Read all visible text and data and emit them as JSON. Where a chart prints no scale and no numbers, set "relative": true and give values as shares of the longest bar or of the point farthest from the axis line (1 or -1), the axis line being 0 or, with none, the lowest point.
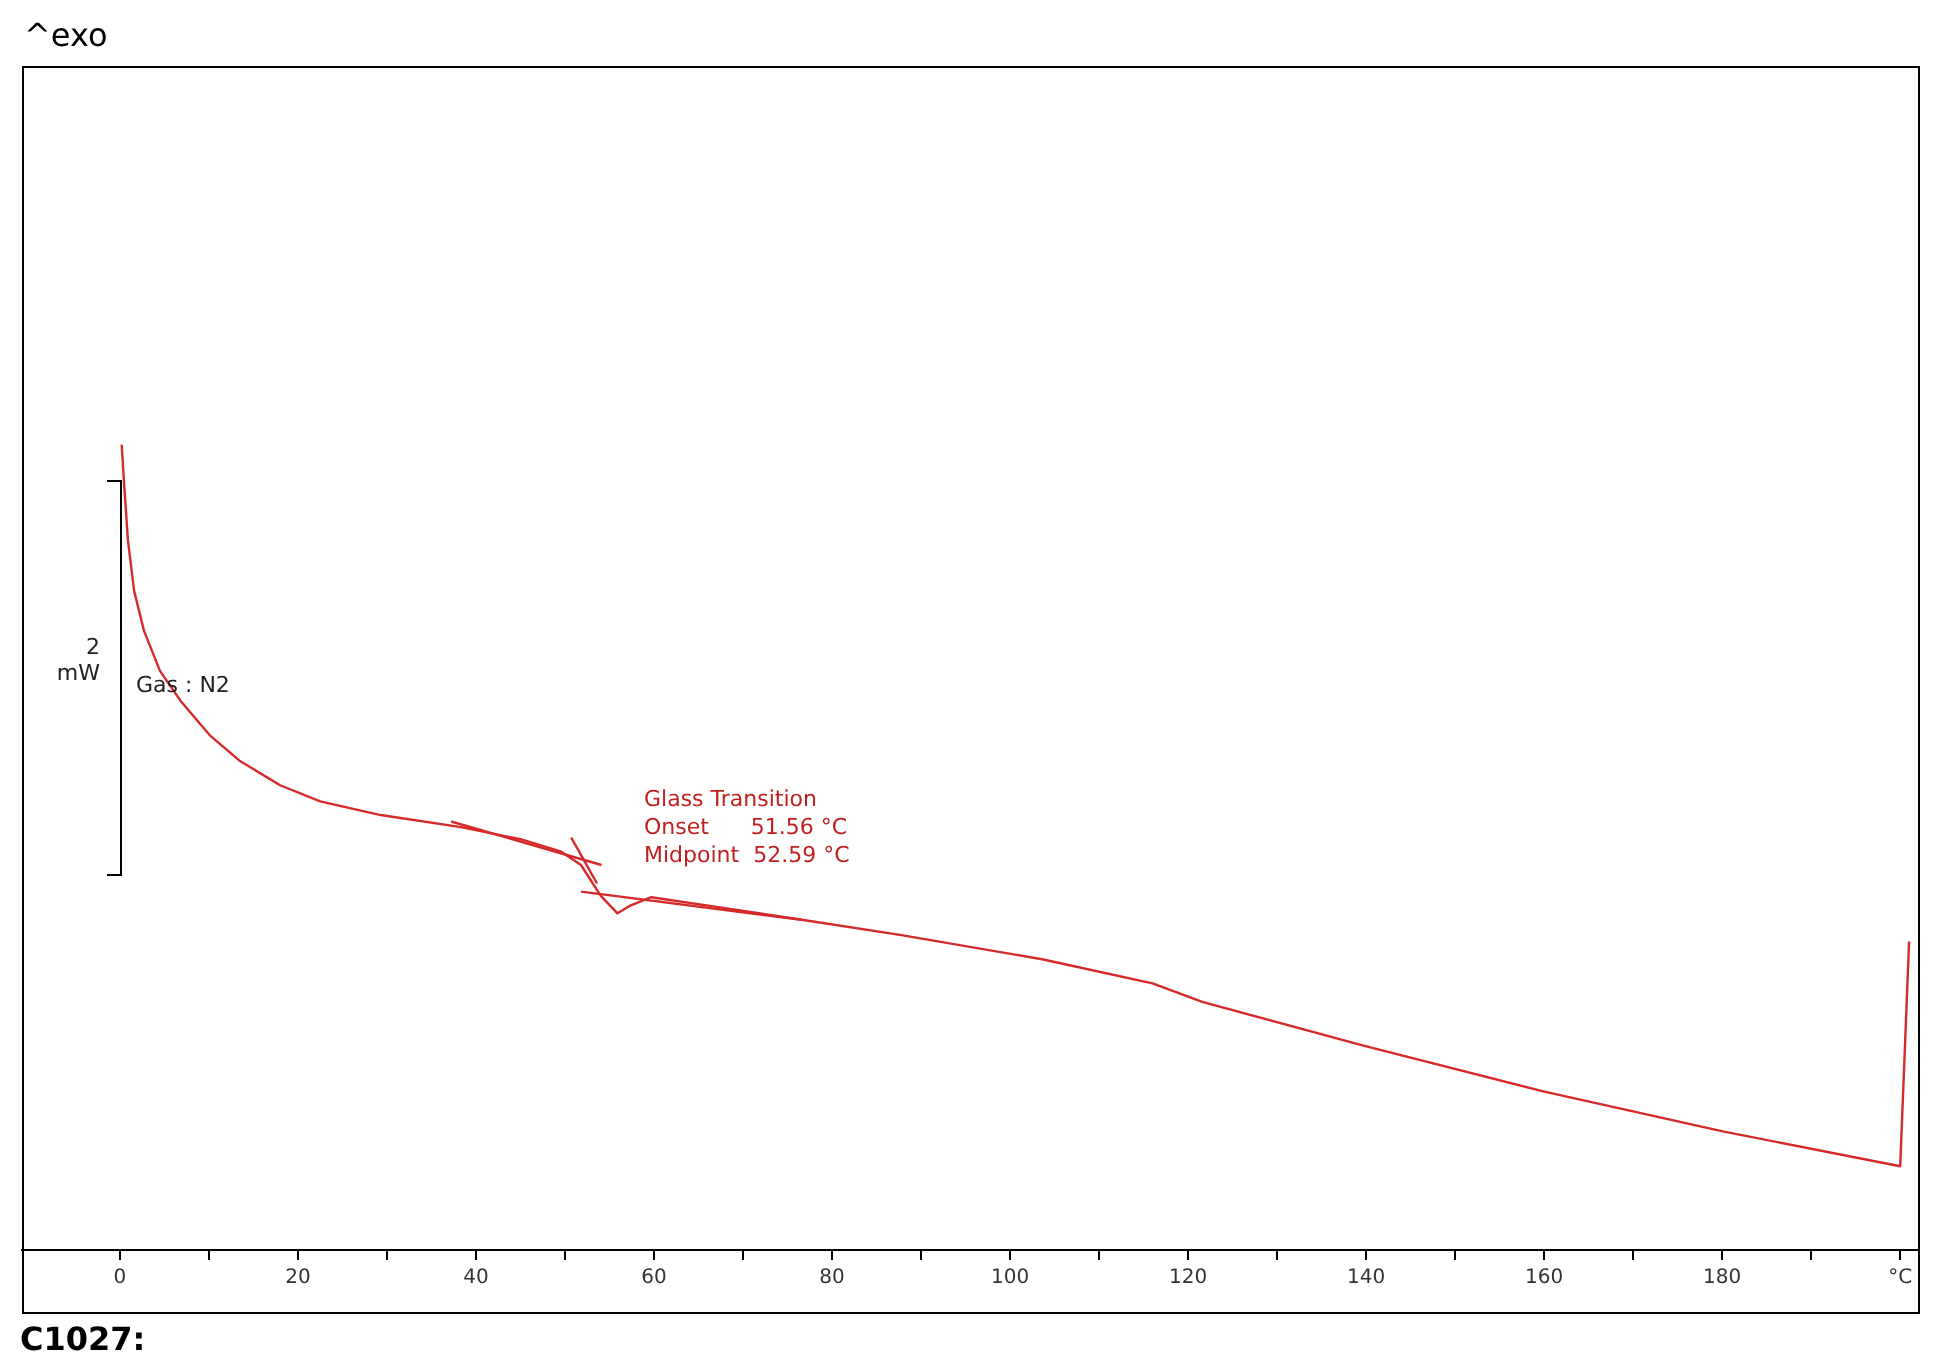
{
  "chart_data": {
    "type": "line",
    "relative": true,
    "marker": "none",
    "xlim": [
      -11,
      202
    ],
    "xticks": [
      0,
      {
        "value": 10,
        "label": null
      },
      20,
      {
        "value": 30,
        "label": null
      },
      40,
      {
        "value": 50,
        "label": null
      },
      60,
      {
        "value": 70,
        "label": null
      },
      80,
      {
        "value": 90,
        "label": null
      },
      100,
      {
        "value": 110,
        "label": null
      },
      120,
      {
        "value": 130,
        "label": null
      },
      140,
      {
        "value": 150,
        "label": null
      },
      160,
      {
        "value": 170,
        "label": null
      },
      180,
      {
        "value": 190,
        "label": null
      },
      {
        "value": 200,
        "label": "°C"
      }
    ],
    "series": [
      {
        "color": "#d42a2a",
        "x": [
          0.2,
          0.45,
          0.9,
          1.6,
          2.7,
          4.5,
          6.8,
          10.1,
          13.5,
          18,
          22.5,
          29.3,
          38.3,
          45,
          49.5,
          51.8,
          54,
          55.9,
          57.4,
          59.7,
          67.6,
          76.6,
          87.8,
          103.6,
          116,
          121.6,
          139.6,
          159.9,
          180.2,
          200,
          201
        ],
        "values": [
          1.0,
          0.955,
          0.881,
          0.818,
          0.769,
          0.719,
          0.682,
          0.639,
          0.607,
          0.577,
          0.557,
          0.54,
          0.525,
          0.51,
          0.495,
          0.478,
          0.44,
          0.418,
          0.428,
          0.438,
          0.425,
          0.41,
          0.391,
          0.361,
          0.331,
          0.308,
          0.254,
          0.197,
          0.147,
          0.104,
          0.383
        ]
      },
      {
        "color": "#d42a2a",
        "x": [
          37.2,
          54.1
        ],
        "values": [
          0.532,
          0.478
        ]
      },
      {
        "color": "#d42a2a",
        "x": [
          51.8,
          76.6
        ],
        "values": [
          0.445,
          0.41
        ]
      },
      {
        "color": "#d42a2a",
        "x": [
          50.7,
          53.6
        ],
        "values": [
          0.512,
          0.455
        ]
      }
    ],
    "annotations": [
      "^exo",
      "2 mW",
      "Gas : N2",
      "Glass Transition",
      "Onset      51.56 °C",
      "Midpoint  52.59 °C",
      "C1027:"
    ]
  }
}
